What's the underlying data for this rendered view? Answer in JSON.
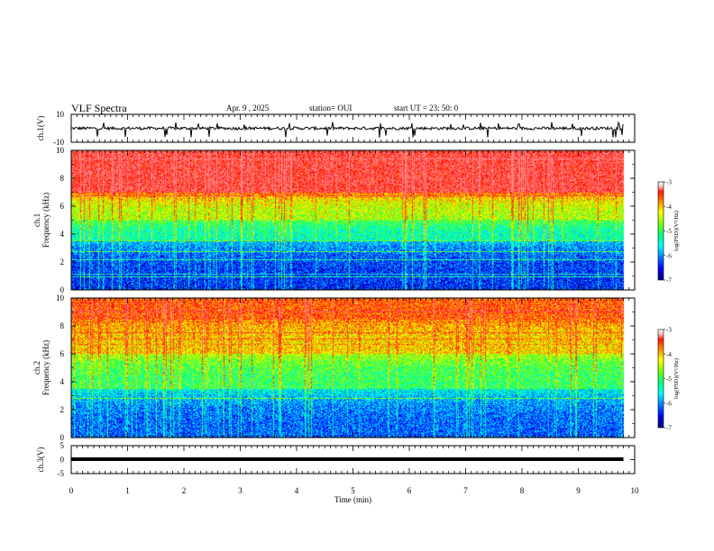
{
  "header": {
    "title": "VLF Spectra",
    "date": "Apr. 9 , 2025",
    "station": "station= OUI",
    "start_ut": "start UT = 23: 50: 0"
  },
  "chart_data": [
    {
      "type": "line",
      "name": "ch1-waveform",
      "ylabel": "ch.1(V)",
      "ylim": [
        -10,
        10
      ],
      "y_ticks": [
        "10",
        "-10"
      ],
      "xlim": [
        0,
        10
      ],
      "data_x_extent": [
        0,
        9.8
      ],
      "approx_level": 0,
      "approx_amplitude": [
        -3,
        3
      ],
      "color": "#000000"
    },
    {
      "type": "heatmap",
      "name": "ch1-spectrogram",
      "ylabel_line1": "ch.1",
      "ylabel_line2": "Frequency (kHz)",
      "ylim": [
        0,
        10
      ],
      "y_ticks": [
        "0",
        "2",
        "4",
        "6",
        "8",
        "10"
      ],
      "xlim": [
        0,
        10
      ],
      "data_x_extent": [
        0,
        9.8
      ],
      "colorbar": {
        "label": "log(PSD)(V²/Hz)",
        "range": [
          -7,
          -3
        ],
        "ticks": [
          "-3",
          "-4",
          "-5",
          "-6",
          "-7"
        ]
      },
      "dominant_log_psd_by_band": [
        {
          "freq_khz": [
            0,
            3.5
          ],
          "log_psd": -6.5
        },
        {
          "freq_khz": [
            3.5,
            5
          ],
          "log_psd": -5.5
        },
        {
          "freq_khz": [
            5,
            7
          ],
          "log_psd": -4.7
        },
        {
          "freq_khz": [
            7,
            10
          ],
          "log_psd": -3.3
        }
      ]
    },
    {
      "type": "heatmap",
      "name": "ch2-spectrogram",
      "ylabel_line1": "ch.2",
      "ylabel_line2": "Frequency (kHz)",
      "ylim": [
        0,
        10
      ],
      "y_ticks": [
        "0",
        "2",
        "4",
        "6",
        "8",
        "10"
      ],
      "xlim": [
        0,
        10
      ],
      "data_x_extent": [
        0,
        9.8
      ],
      "colorbar": {
        "label": "log(PSD)(V²/Hz)",
        "range": [
          -7,
          -3
        ],
        "ticks": [
          "-3",
          "-4",
          "-5",
          "-6",
          "-7"
        ]
      },
      "dominant_log_psd_by_band": [
        {
          "freq_khz": [
            0,
            3.5
          ],
          "log_psd": -6.3
        },
        {
          "freq_khz": [
            3.5,
            6
          ],
          "log_psd": -5.2
        },
        {
          "freq_khz": [
            6,
            8.5
          ],
          "log_psd": -4.3
        },
        {
          "freq_khz": [
            8.5,
            10
          ],
          "log_psd": -3.8
        }
      ]
    },
    {
      "type": "line",
      "name": "ch3-waveform",
      "ylabel": "ch.3(V)",
      "ylim": [
        -5,
        5
      ],
      "y_ticks": [
        "5",
        "0",
        "-5"
      ],
      "xlim": [
        0,
        10
      ],
      "data_x_extent": [
        0,
        9.8
      ],
      "approx_level": 0,
      "color": "#000000"
    }
  ],
  "x_axis": {
    "label": "Time (min)",
    "ticks": [
      "0",
      "1",
      "2",
      "3",
      "4",
      "5",
      "6",
      "7",
      "8",
      "9",
      "10"
    ]
  },
  "colors": {
    "colormap": [
      "#00007f",
      "#0000ff",
      "#0080ff",
      "#00ffff",
      "#00ff80",
      "#80ff00",
      "#ffff00",
      "#ff8000",
      "#ff0000",
      "#ff8080",
      "#ffffff"
    ],
    "axis": "#000000"
  }
}
